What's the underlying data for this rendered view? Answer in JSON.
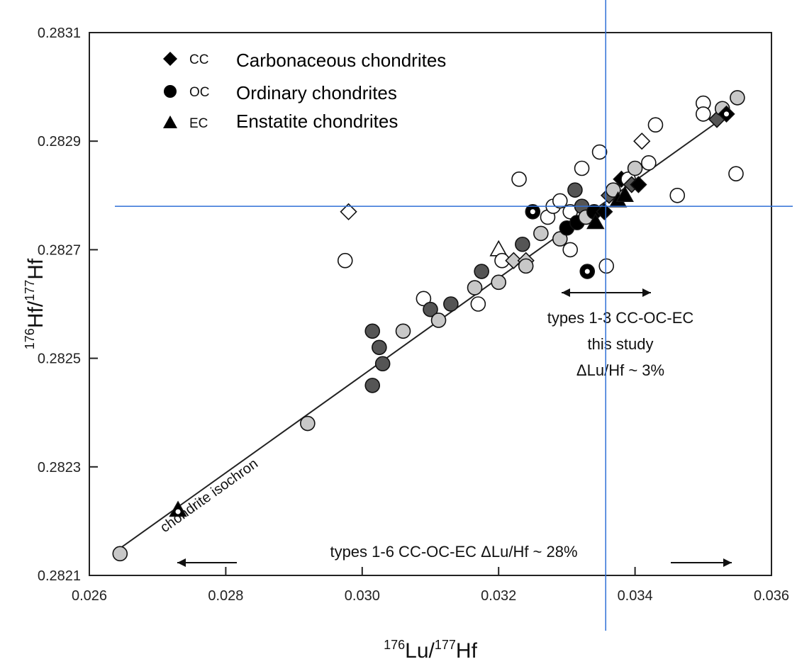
{
  "chart_data": {
    "type": "scatter",
    "title": "",
    "xlabel": {
      "sup": "176",
      "base": "Lu/",
      "sup2": "177",
      "tail": "Hf"
    },
    "ylabel": {
      "sup": "176",
      "base": "Hf/",
      "sup2": "177",
      "tail": "Hf"
    },
    "xlim": [
      0.026,
      0.036
    ],
    "ylim": [
      0.2821,
      0.2831
    ],
    "xticks": [
      "0.026",
      "0.028",
      "0.030",
      "0.032",
      "0.034",
      "0.036"
    ],
    "yticks": [
      "0.2821",
      "0.2823",
      "0.2825",
      "0.2827",
      "0.2829",
      "0.2831"
    ],
    "legend": [
      {
        "marker": "diamond",
        "code": "CC",
        "label": "Carbonaceous chondrites"
      },
      {
        "marker": "circle",
        "code": "OC",
        "label": "Ordinary chondrites"
      },
      {
        "marker": "triangle",
        "code": "EC",
        "label": "Enstatite chondrites"
      }
    ],
    "legend_position": "top-left",
    "isochron_label": "chondrite isochron",
    "isochron": {
      "x": [
        0.02645,
        0.03537
      ],
      "y": [
        0.28215,
        0.28295
      ]
    },
    "annotations": {
      "this_study": [
        "types 1-3 CC-OC-EC",
        "this study",
        "ΔLu/Hf ~ 3%"
      ],
      "all_types": "types 1-6 CC-OC-EC  ΔLu/Hf ~ 28%"
    },
    "crosshair": {
      "x": 0.03357,
      "y": 0.28278
    },
    "colors": {
      "black": "#000000",
      "dark_gray": "#555555",
      "light_gray": "#c8c8c8",
      "white": "#ffffff",
      "crosshair": "#2f6fd6"
    },
    "points": [
      {
        "x": 0.02645,
        "y": 0.28214,
        "m": "circle",
        "f": "light_gray"
      },
      {
        "x": 0.0273,
        "y": 0.28222,
        "m": "triangle",
        "f": "black",
        "dot": true
      },
      {
        "x": 0.0292,
        "y": 0.28238,
        "m": "circle",
        "f": "light_gray"
      },
      {
        "x": 0.0298,
        "y": 0.28277,
        "m": "diamond",
        "f": "white"
      },
      {
        "x": 0.02975,
        "y": 0.28268,
        "m": "circle",
        "f": "white"
      },
      {
        "x": 0.03015,
        "y": 0.28245,
        "m": "circle",
        "f": "dark_gray"
      },
      {
        "x": 0.03025,
        "y": 0.28252,
        "m": "circle",
        "f": "dark_gray"
      },
      {
        "x": 0.03015,
        "y": 0.28255,
        "m": "circle",
        "f": "dark_gray"
      },
      {
        "x": 0.0303,
        "y": 0.28249,
        "m": "circle",
        "f": "dark_gray"
      },
      {
        "x": 0.0306,
        "y": 0.28255,
        "m": "circle",
        "f": "light_gray"
      },
      {
        "x": 0.0309,
        "y": 0.28261,
        "m": "circle",
        "f": "white"
      },
      {
        "x": 0.031,
        "y": 0.28259,
        "m": "circle",
        "f": "dark_gray"
      },
      {
        "x": 0.03112,
        "y": 0.28257,
        "m": "circle",
        "f": "light_gray"
      },
      {
        "x": 0.0313,
        "y": 0.2826,
        "m": "circle",
        "f": "dark_gray"
      },
      {
        "x": 0.03165,
        "y": 0.28263,
        "m": "circle",
        "f": "light_gray"
      },
      {
        "x": 0.0317,
        "y": 0.2826,
        "m": "circle",
        "f": "white"
      },
      {
        "x": 0.03175,
        "y": 0.28266,
        "m": "circle",
        "f": "dark_gray"
      },
      {
        "x": 0.032,
        "y": 0.28264,
        "m": "circle",
        "f": "light_gray"
      },
      {
        "x": 0.032,
        "y": 0.2827,
        "m": "triangle",
        "f": "white"
      },
      {
        "x": 0.03205,
        "y": 0.28268,
        "m": "circle",
        "f": "white"
      },
      {
        "x": 0.03222,
        "y": 0.28268,
        "m": "diamond",
        "f": "light_gray"
      },
      {
        "x": 0.0323,
        "y": 0.28283,
        "m": "circle",
        "f": "white"
      },
      {
        "x": 0.03235,
        "y": 0.28271,
        "m": "circle",
        "f": "dark_gray"
      },
      {
        "x": 0.0324,
        "y": 0.28268,
        "m": "diamond",
        "f": "light_gray"
      },
      {
        "x": 0.0324,
        "y": 0.28267,
        "m": "circle",
        "f": "light_gray"
      },
      {
        "x": 0.0325,
        "y": 0.28277,
        "m": "circle",
        "f": "black",
        "dot": true
      },
      {
        "x": 0.03262,
        "y": 0.28273,
        "m": "circle",
        "f": "light_gray"
      },
      {
        "x": 0.03272,
        "y": 0.28276,
        "m": "circle",
        "f": "white"
      },
      {
        "x": 0.0328,
        "y": 0.28278,
        "m": "circle",
        "f": "white"
      },
      {
        "x": 0.0329,
        "y": 0.28279,
        "m": "circle",
        "f": "white"
      },
      {
        "x": 0.0329,
        "y": 0.28272,
        "m": "circle",
        "f": "light_gray"
      },
      {
        "x": 0.033,
        "y": 0.28274,
        "m": "circle",
        "f": "black"
      },
      {
        "x": 0.03305,
        "y": 0.28277,
        "m": "circle",
        "f": "white"
      },
      {
        "x": 0.03305,
        "y": 0.2827,
        "m": "circle",
        "f": "white"
      },
      {
        "x": 0.03312,
        "y": 0.28281,
        "m": "circle",
        "f": "dark_gray"
      },
      {
        "x": 0.03315,
        "y": 0.28275,
        "m": "circle",
        "f": "black"
      },
      {
        "x": 0.03322,
        "y": 0.28278,
        "m": "circle",
        "f": "dark_gray"
      },
      {
        "x": 0.03328,
        "y": 0.28276,
        "m": "circle",
        "f": "light_gray"
      },
      {
        "x": 0.0333,
        "y": 0.28266,
        "m": "circle",
        "f": "black",
        "dot": true
      },
      {
        "x": 0.03322,
        "y": 0.28285,
        "m": "circle",
        "f": "white"
      },
      {
        "x": 0.0334,
        "y": 0.28277,
        "m": "circle",
        "f": "black"
      },
      {
        "x": 0.03342,
        "y": 0.28275,
        "m": "triangle",
        "f": "black"
      },
      {
        "x": 0.03348,
        "y": 0.28288,
        "m": "circle",
        "f": "white"
      },
      {
        "x": 0.03355,
        "y": 0.28277,
        "m": "diamond",
        "f": "black"
      },
      {
        "x": 0.03358,
        "y": 0.28267,
        "m": "circle",
        "f": "white"
      },
      {
        "x": 0.03362,
        "y": 0.2828,
        "m": "diamond",
        "f": "dark_gray"
      },
      {
        "x": 0.03368,
        "y": 0.28281,
        "m": "circle",
        "f": "light_gray"
      },
      {
        "x": 0.03375,
        "y": 0.28279,
        "m": "triangle",
        "f": "black"
      },
      {
        "x": 0.0338,
        "y": 0.28283,
        "m": "diamond",
        "f": "black"
      },
      {
        "x": 0.03385,
        "y": 0.2828,
        "m": "triangle",
        "f": "black"
      },
      {
        "x": 0.0339,
        "y": 0.28283,
        "m": "circle",
        "f": "white"
      },
      {
        "x": 0.03395,
        "y": 0.28282,
        "m": "diamond",
        "f": "dark_gray"
      },
      {
        "x": 0.034,
        "y": 0.28285,
        "m": "circle",
        "f": "light_gray"
      },
      {
        "x": 0.03405,
        "y": 0.28282,
        "m": "diamond",
        "f": "black"
      },
      {
        "x": 0.0341,
        "y": 0.2829,
        "m": "diamond",
        "f": "white"
      },
      {
        "x": 0.0342,
        "y": 0.28286,
        "m": "circle",
        "f": "white"
      },
      {
        "x": 0.0343,
        "y": 0.28293,
        "m": "circle",
        "f": "white"
      },
      {
        "x": 0.03462,
        "y": 0.2828,
        "m": "circle",
        "f": "white"
      },
      {
        "x": 0.035,
        "y": 0.28297,
        "m": "circle",
        "f": "white"
      },
      {
        "x": 0.035,
        "y": 0.28295,
        "m": "circle",
        "f": "white"
      },
      {
        "x": 0.0352,
        "y": 0.28294,
        "m": "diamond",
        "f": "dark_gray"
      },
      {
        "x": 0.03528,
        "y": 0.28296,
        "m": "circle",
        "f": "light_gray"
      },
      {
        "x": 0.03534,
        "y": 0.28295,
        "m": "diamond",
        "f": "black",
        "dot": true
      },
      {
        "x": 0.03548,
        "y": 0.28284,
        "m": "circle",
        "f": "white"
      },
      {
        "x": 0.0355,
        "y": 0.28298,
        "m": "circle",
        "f": "light_gray"
      }
    ]
  }
}
